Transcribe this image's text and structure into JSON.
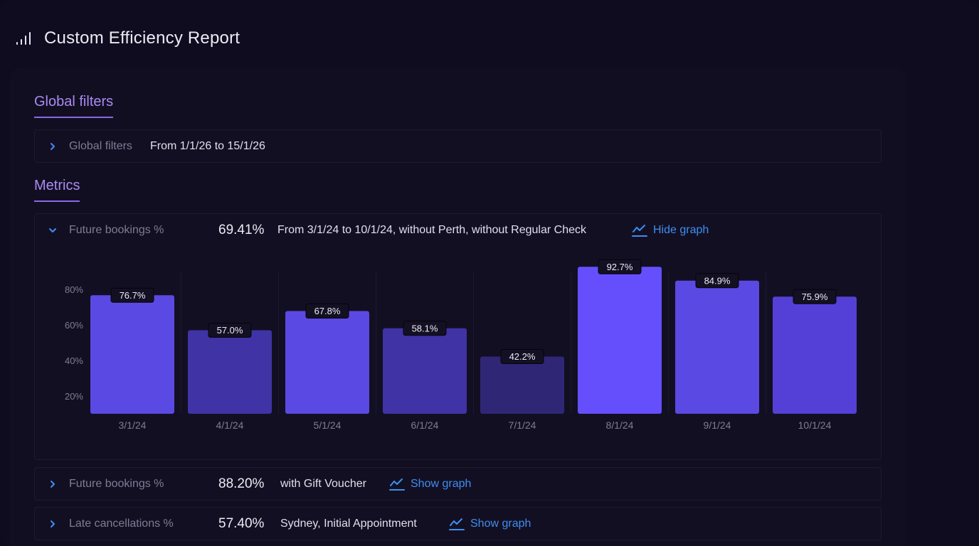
{
  "header": {
    "title": "Custom Efficiency Report",
    "icon": "bar-chart-icon"
  },
  "global_filters": {
    "section_title": "Global filters",
    "row_label": "Global filters",
    "value": "From 1/1/26 to 15/1/26"
  },
  "metrics": {
    "section_title": "Metrics",
    "items": [
      {
        "label": "Future bookings %",
        "value": "69.41%",
        "description": "From 3/1/24 to 10/1/24, without Perth, without Regular Check",
        "graph_link": "Hide graph",
        "expanded": true
      },
      {
        "label": "Future bookings %",
        "value": "88.20%",
        "description": "with Gift Voucher",
        "graph_link": "Show graph",
        "expanded": false
      },
      {
        "label": "Late cancellations %",
        "value": "57.40%",
        "description": "Sydney, Initial Appointment",
        "graph_link": "Show graph",
        "expanded": false
      }
    ]
  },
  "colors": {
    "accent": "#a98bf0",
    "link": "#3d8ef0",
    "bar_bright": "#654ffd",
    "bar_mid": "#5b49e4",
    "bar_dim": "#3f33a6",
    "bar_darkest": "#2f2775"
  },
  "chart_data": {
    "type": "bar",
    "categories": [
      "3/1/24",
      "4/1/24",
      "5/1/24",
      "6/1/24",
      "7/1/24",
      "8/1/24",
      "9/1/24",
      "10/1/24"
    ],
    "values": [
      76.7,
      57.0,
      67.8,
      58.1,
      42.2,
      92.7,
      84.9,
      75.9
    ],
    "data_labels": [
      "76.7%",
      "57.0%",
      "67.8%",
      "58.1%",
      "42.2%",
      "92.7%",
      "84.9%",
      "75.9%"
    ],
    "bar_colors": [
      "#5b49e4",
      "#3f33a6",
      "#5b49e4",
      "#3f33a6",
      "#2f2775",
      "#654ffd",
      "#5b49e4",
      "#5440d6"
    ],
    "y_ticks": [
      20,
      40,
      60,
      80
    ],
    "y_tick_labels": [
      "20%",
      "40%",
      "60%",
      "80%"
    ],
    "ylim": [
      0,
      95
    ],
    "grid": false
  }
}
